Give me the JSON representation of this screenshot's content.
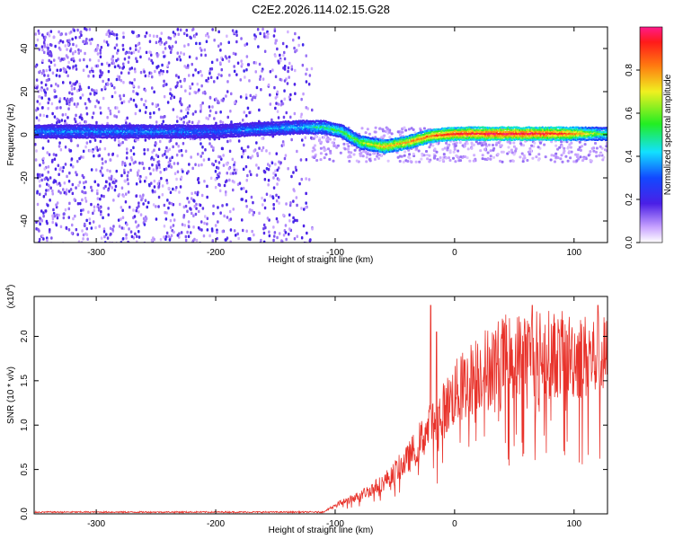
{
  "figure_title": "C2E2.2026.114.02.15.G28",
  "chart_data": [
    {
      "type": "heatmap",
      "name": "spectrogram",
      "xlabel": "Height of straight line (km)",
      "ylabel": "Frequency (Hz)",
      "xlim": [
        -352,
        128
      ],
      "ylim": [
        -50,
        50
      ],
      "xticks": [
        -300,
        -200,
        -100,
        0,
        100
      ],
      "xtick_labels": [
        "-300",
        "-200",
        "-100",
        "0",
        "100"
      ],
      "yticks": [
        -40,
        -20,
        0,
        20,
        40
      ],
      "ytick_labels": [
        "-40",
        "-20",
        "0",
        "20",
        "40"
      ],
      "colorbar": {
        "label": "Normalized spectral amplitude",
        "range": [
          0,
          1
        ],
        "ticks": [
          0.0,
          0.2,
          0.4,
          0.6,
          0.8
        ],
        "tick_labels": [
          "0.0",
          "0.2",
          "0.4",
          "0.6",
          "0.8"
        ]
      },
      "ridge": [
        {
          "x": -352,
          "freq": 2,
          "amp": 0.35
        },
        {
          "x": -300,
          "freq": 2,
          "amp": 0.35
        },
        {
          "x": -250,
          "freq": 2,
          "amp": 0.35
        },
        {
          "x": -200,
          "freq": 2,
          "amp": 0.3
        },
        {
          "x": -170,
          "freq": 3,
          "amp": 0.35
        },
        {
          "x": -130,
          "freq": 4,
          "amp": 0.4
        },
        {
          "x": -110,
          "freq": 4,
          "amp": 0.5
        },
        {
          "x": -95,
          "freq": 2,
          "amp": 0.55
        },
        {
          "x": -80,
          "freq": -3,
          "amp": 0.6
        },
        {
          "x": -60,
          "freq": -5,
          "amp": 0.75
        },
        {
          "x": -40,
          "freq": -3,
          "amp": 0.8
        },
        {
          "x": -20,
          "freq": 0,
          "amp": 0.85
        },
        {
          "x": 0,
          "freq": 1,
          "amp": 0.9
        },
        {
          "x": 30,
          "freq": 1,
          "amp": 0.95
        },
        {
          "x": 60,
          "freq": 1,
          "amp": 0.95
        },
        {
          "x": 90,
          "freq": 1,
          "amp": 0.9
        },
        {
          "x": 110,
          "freq": 1,
          "amp": 0.7
        },
        {
          "x": 128,
          "freq": 1,
          "amp": 0.5
        }
      ]
    },
    {
      "type": "line",
      "name": "snr",
      "xlabel": "Height of straight line (km)",
      "ylabel": "SNR (10 * v/v)",
      "yscale_label": "(x10",
      "yscale_exp": "4",
      "yscale_close": ")",
      "xlim": [
        -352,
        128
      ],
      "ylim": [
        0,
        2.45
      ],
      "xticks": [
        -300,
        -200,
        -100,
        0,
        100
      ],
      "xtick_labels": [
        "-300",
        "-200",
        "-100",
        "0",
        "100"
      ],
      "yticks": [
        0.0,
        0.5,
        1.0,
        1.5,
        2.0
      ],
      "ytick_labels": [
        "0.0",
        "0.5",
        "1.0",
        "1.5",
        "2.0"
      ],
      "color": "#e8322a",
      "series_envelope": [
        {
          "x": -352,
          "y": 0.02
        },
        {
          "x": -110,
          "y": 0.02
        },
        {
          "x": -100,
          "y": 0.1
        },
        {
          "x": -80,
          "y": 0.2
        },
        {
          "x": -60,
          "y": 0.35
        },
        {
          "x": -40,
          "y": 0.6
        },
        {
          "x": -25,
          "y": 0.9
        },
        {
          "x": -10,
          "y": 1.15
        },
        {
          "x": 0,
          "y": 1.35
        },
        {
          "x": 20,
          "y": 1.6
        },
        {
          "x": 40,
          "y": 1.75
        },
        {
          "x": 60,
          "y": 1.8
        },
        {
          "x": 80,
          "y": 1.8
        },
        {
          "x": 100,
          "y": 1.78
        },
        {
          "x": 128,
          "y": 1.75
        }
      ],
      "spikes": [
        {
          "x": -20,
          "y": 2.35
        },
        {
          "x": -15,
          "y": 2.05
        },
        {
          "x": 65,
          "y": 2.35
        },
        {
          "x": 120,
          "y": 2.35
        }
      ]
    }
  ]
}
